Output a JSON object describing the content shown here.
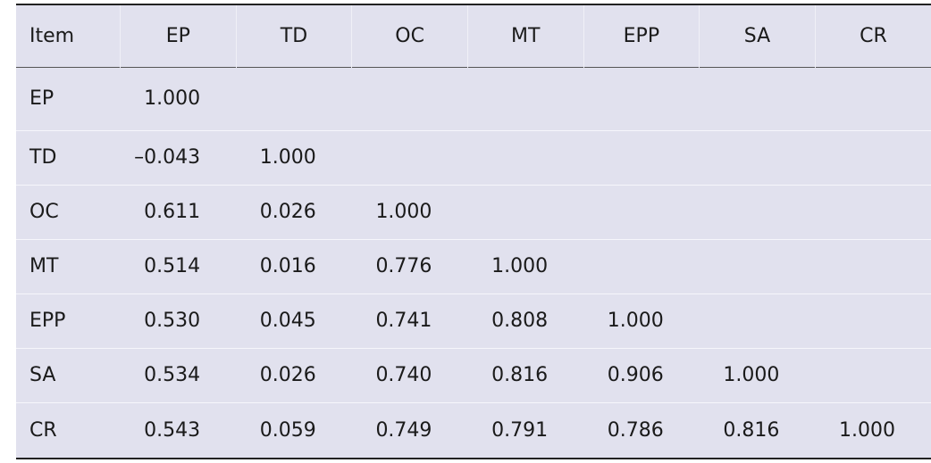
{
  "table": {
    "header": [
      "Item",
      "EP",
      "TD",
      "OC",
      "MT",
      "EPP",
      "SA",
      "CR"
    ],
    "rows": [
      [
        "EP",
        "1.000",
        null,
        null,
        null,
        null,
        null,
        null
      ],
      [
        "TD",
        "–0.043",
        "1.000",
        null,
        null,
        null,
        null,
        null
      ],
      [
        "OC",
        "0.611",
        "0.026",
        "1.000",
        null,
        null,
        null,
        null
      ],
      [
        "MT",
        "0.514",
        "0.016",
        "0.776",
        "1.000",
        null,
        null,
        null
      ],
      [
        "EPP",
        "0.530",
        "0.045",
        "0.741",
        "0.808",
        "1.000",
        null,
        null
      ],
      [
        "SA",
        "0.534",
        "0.026",
        "0.740",
        "0.816",
        "0.906",
        "1.000",
        null
      ],
      [
        "CR",
        "0.543",
        "0.059",
        "0.749",
        "0.791",
        "0.786",
        "0.816",
        "1.000"
      ]
    ]
  }
}
